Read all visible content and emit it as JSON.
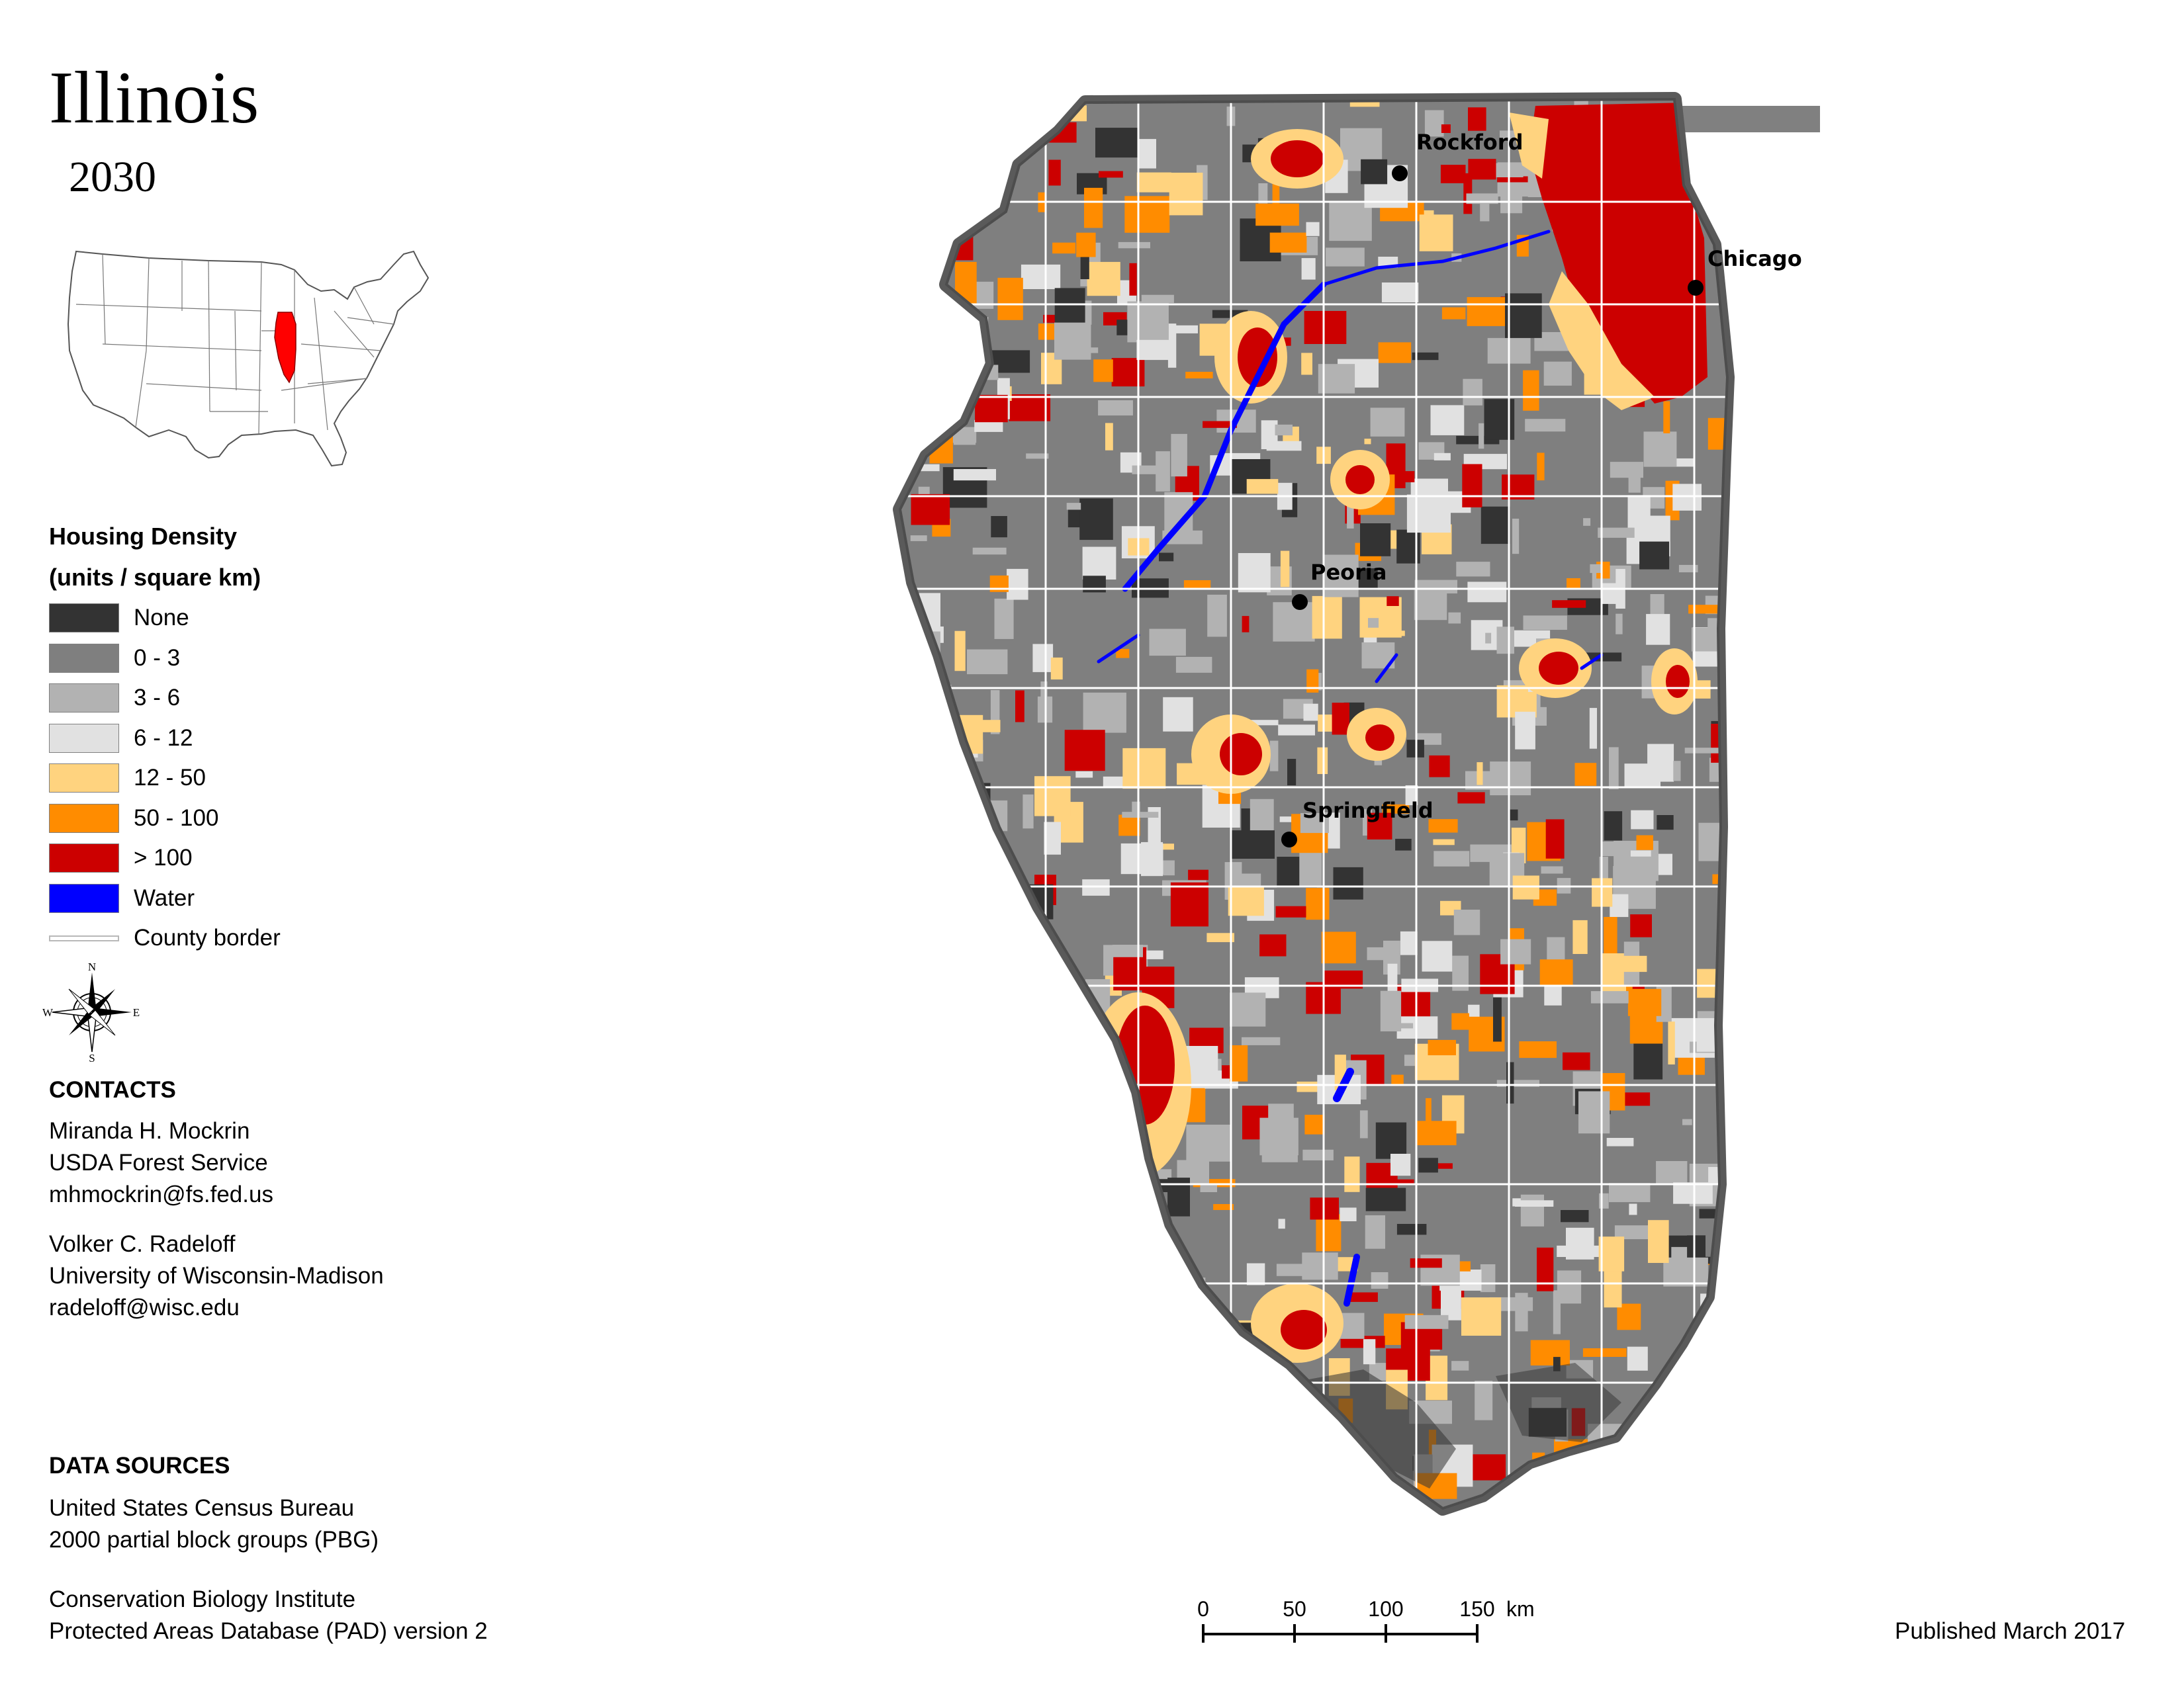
{
  "header": {
    "title": "Illinois",
    "year": "2030"
  },
  "legend": {
    "title_line1": "Housing Density",
    "title_line2": "(units / square km)",
    "items": [
      {
        "label": "None",
        "color": "#333333"
      },
      {
        "label": "0 - 3",
        "color": "#7f7f7f"
      },
      {
        "label": "3 - 6",
        "color": "#b2b2b2"
      },
      {
        "label": "6 - 12",
        "color": "#e1e1e1"
      },
      {
        "label": "12 - 50",
        "color": "#ffd37f"
      },
      {
        "label": "50 - 100",
        "color": "#ff8c00"
      },
      {
        "label": "> 100",
        "color": "#cc0000"
      },
      {
        "label": "Water",
        "color": "#0000ff"
      }
    ],
    "border_label": "County border"
  },
  "compass": {
    "n": "N",
    "s": "S",
    "e": "E",
    "w": "W"
  },
  "contacts": {
    "heading": "CONTACTS",
    "people": [
      {
        "name": "Miranda H. Mockrin",
        "org": "USDA Forest Service",
        "email": "mhmockrin@fs.fed.us"
      },
      {
        "name": "Volker C. Radeloff",
        "org": "University of Wisconsin-Madison",
        "email": "radeloff@wisc.edu"
      }
    ]
  },
  "data_sources": {
    "heading": "DATA SOURCES",
    "lines": [
      "United States Census Bureau",
      "2000 partial block groups (PBG)",
      "Conservation Biology Institute",
      "Protected Areas Database (PAD) version 2"
    ]
  },
  "map": {
    "cities": [
      {
        "name": "Rockford"
      },
      {
        "name": "Chicago"
      },
      {
        "name": "Peoria"
      },
      {
        "name": "Springfield"
      }
    ]
  },
  "scale": {
    "ticks": [
      "0",
      "50",
      "100",
      "150"
    ],
    "unit": "km"
  },
  "footer": {
    "published": "Published March 2017"
  }
}
